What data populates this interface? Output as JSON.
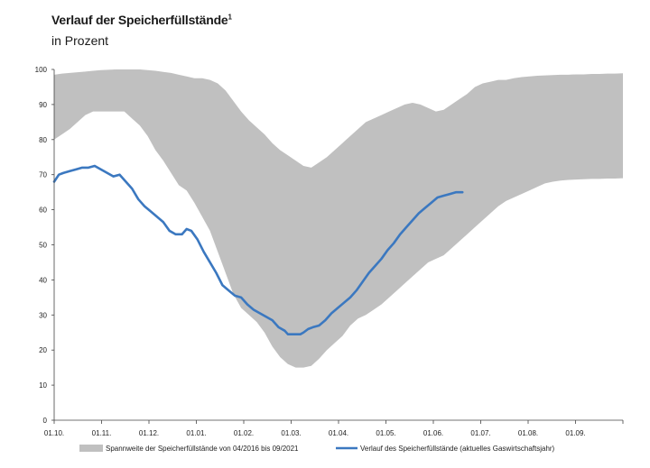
{
  "header": {
    "title": "Verlauf der Speicherfüllstände",
    "title_footnote": "1",
    "subtitle": "in Prozent"
  },
  "chart_data": {
    "type": "area",
    "x_tick_labels": [
      "01.10.",
      "01.11.",
      "01.12.",
      "01.01.",
      "01.02.",
      "01.03.",
      "01.04.",
      "01.05.",
      "01.06.",
      "01.07.",
      "01.08.",
      "01.09."
    ],
    "ylim": [
      0,
      100
    ],
    "y_ticks": [
      0,
      10,
      20,
      30,
      40,
      50,
      60,
      70,
      80,
      90,
      100
    ],
    "grid": false,
    "legend_position": "bottom",
    "colors": {
      "band": "#c0c0c0",
      "line": "#3b78c0"
    },
    "series": [
      {
        "name": "Spannweite der Speicherfüllstände von 04/2016 bis 09/2021",
        "kind": "band",
        "x": [
          0,
          5,
          10,
          15,
          20,
          25,
          30,
          35,
          40,
          45,
          50,
          55,
          60,
          65,
          70,
          75,
          80,
          85,
          90,
          95,
          100,
          105,
          110,
          115,
          120,
          125,
          130,
          135,
          140,
          145,
          150,
          155,
          160,
          165,
          170,
          175,
          180,
          185,
          190,
          195,
          200,
          205,
          210,
          215,
          220,
          225,
          230,
          235,
          240,
          245,
          250,
          255,
          260,
          265,
          270,
          275,
          280,
          285,
          290,
          295,
          300,
          305,
          310,
          315,
          320,
          325,
          330,
          335,
          340,
          345,
          350,
          355,
          360,
          365
        ],
        "upper": [
          98.5,
          98.8,
          99.0,
          99.2,
          99.4,
          99.6,
          99.8,
          99.9,
          100,
          100,
          100,
          100,
          99.8,
          99.6,
          99.3,
          99.0,
          98.5,
          98.0,
          97.5,
          97.5,
          97.0,
          96.0,
          94.0,
          91.0,
          88.0,
          85.5,
          83.5,
          81.5,
          79.0,
          77.0,
          75.5,
          74.0,
          72.5,
          72.0,
          73.5,
          75.0,
          77.0,
          79.0,
          81.0,
          83.0,
          85.0,
          86.0,
          87.0,
          88.0,
          89.0,
          90.0,
          90.5,
          90.0,
          89.0,
          88.0,
          88.5,
          90.0,
          91.5,
          93.0,
          95.0,
          96.0,
          96.5,
          97.0,
          97.0,
          97.5,
          97.8,
          98.0,
          98.2,
          98.3,
          98.4,
          98.5,
          98.5,
          98.6,
          98.6,
          98.7,
          98.7,
          98.8,
          98.8,
          98.9
        ],
        "lower": [
          80.0,
          81.5,
          83.0,
          85.0,
          87.0,
          88.0,
          88.0,
          88.0,
          88.0,
          88.0,
          86.0,
          84.0,
          81.0,
          77.0,
          74.0,
          70.5,
          67.0,
          65.5,
          62.0,
          58.0,
          54.0,
          48.0,
          42.0,
          36.0,
          32.0,
          30.0,
          28.0,
          25.0,
          21.0,
          18.0,
          16.0,
          15.0,
          15.0,
          15.5,
          17.5,
          20.0,
          22.0,
          24.0,
          27.0,
          29.0,
          30.0,
          31.5,
          33.0,
          35.0,
          37.0,
          39.0,
          41.0,
          43.0,
          45.0,
          46.0,
          47.0,
          49.0,
          51.0,
          53.0,
          55.0,
          57.0,
          59.0,
          61.0,
          62.5,
          63.5,
          64.5,
          65.5,
          66.5,
          67.5,
          68.0,
          68.3,
          68.5,
          68.6,
          68.7,
          68.8,
          68.8,
          68.9,
          68.9,
          69.0
        ]
      },
      {
        "name": "Verlauf des Speicherfüllstände (aktuelles Gaswirtschaftsjahr)",
        "kind": "line",
        "x": [
          0,
          3,
          6,
          10,
          14,
          18,
          22,
          26,
          30,
          34,
          38,
          42,
          46,
          50,
          54,
          58,
          62,
          66,
          70,
          74,
          78,
          82,
          85,
          88,
          92,
          96,
          100,
          104,
          108,
          112,
          116,
          120,
          124,
          128,
          132,
          136,
          140,
          144,
          148,
          150,
          152,
          154,
          156,
          158,
          160,
          163,
          166,
          170,
          174,
          178,
          182,
          186,
          190,
          194,
          198,
          202,
          206,
          210,
          214,
          218,
          222,
          226,
          230,
          234,
          238,
          242,
          246,
          250,
          254,
          258,
          262
        ],
        "values": [
          68,
          70,
          70.5,
          71,
          71.5,
          72,
          72,
          72.5,
          71.5,
          70.5,
          69.5,
          70,
          68,
          66,
          63,
          61,
          59.5,
          58,
          56.5,
          54,
          53,
          53,
          54.5,
          54,
          51.5,
          48,
          45,
          42,
          38.5,
          37,
          35.5,
          35,
          33,
          31.5,
          30.5,
          29.5,
          28.5,
          26.5,
          25.5,
          24.5,
          24.5,
          24.5,
          24.5,
          24.5,
          25,
          26,
          26.5,
          27,
          28.5,
          30.5,
          32,
          33.5,
          35,
          37,
          39.5,
          42,
          44,
          46,
          48.5,
          50.5,
          53,
          55,
          57,
          59,
          60.5,
          62,
          63.5,
          64,
          64.5,
          65,
          65
        ]
      }
    ]
  }
}
